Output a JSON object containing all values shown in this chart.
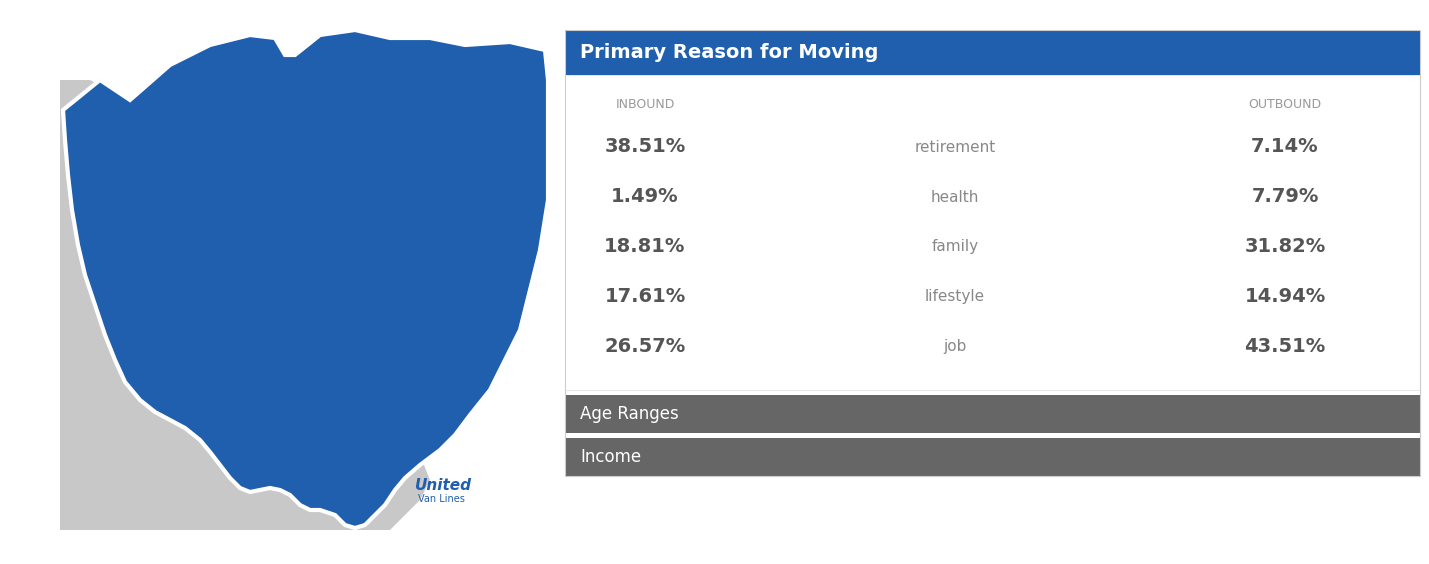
{
  "title": "Primary Reason for Moving",
  "title_bg_color": "#1F5FAD",
  "title_text_color": "#FFFFFF",
  "header_inbound": "INBOUND",
  "header_outbound": "OUTBOUND",
  "header_color": "#999999",
  "rows": [
    {
      "category": "retirement",
      "inbound": "38.51%",
      "outbound": "7.14%"
    },
    {
      "category": "health",
      "inbound": "1.49%",
      "outbound": "7.79%"
    },
    {
      "category": "family",
      "inbound": "18.81%",
      "outbound": "31.82%"
    },
    {
      "category": "lifestyle",
      "inbound": "17.61%",
      "outbound": "14.94%"
    },
    {
      "category": "job",
      "inbound": "26.57%",
      "outbound": "43.51%"
    }
  ],
  "row_value_color": "#555555",
  "row_category_color": "#888888",
  "collapsed_bars": [
    {
      "label": "Age Ranges",
      "bg_color": "#666666",
      "text_color": "#FFFFFF"
    },
    {
      "label": "Income",
      "bg_color": "#666666",
      "text_color": "#FFFFFF"
    }
  ],
  "map_blue": "#1F5FAD",
  "map_gray": "#C8C8C8",
  "map_white_border": "#FFFFFF",
  "logo_text_united": "United",
  "logo_text_sub": "Van Lines",
  "logo_color": "#1F5FAD",
  "bg_color": "#FFFFFF",
  "fig_width": 14.29,
  "fig_height": 5.64
}
